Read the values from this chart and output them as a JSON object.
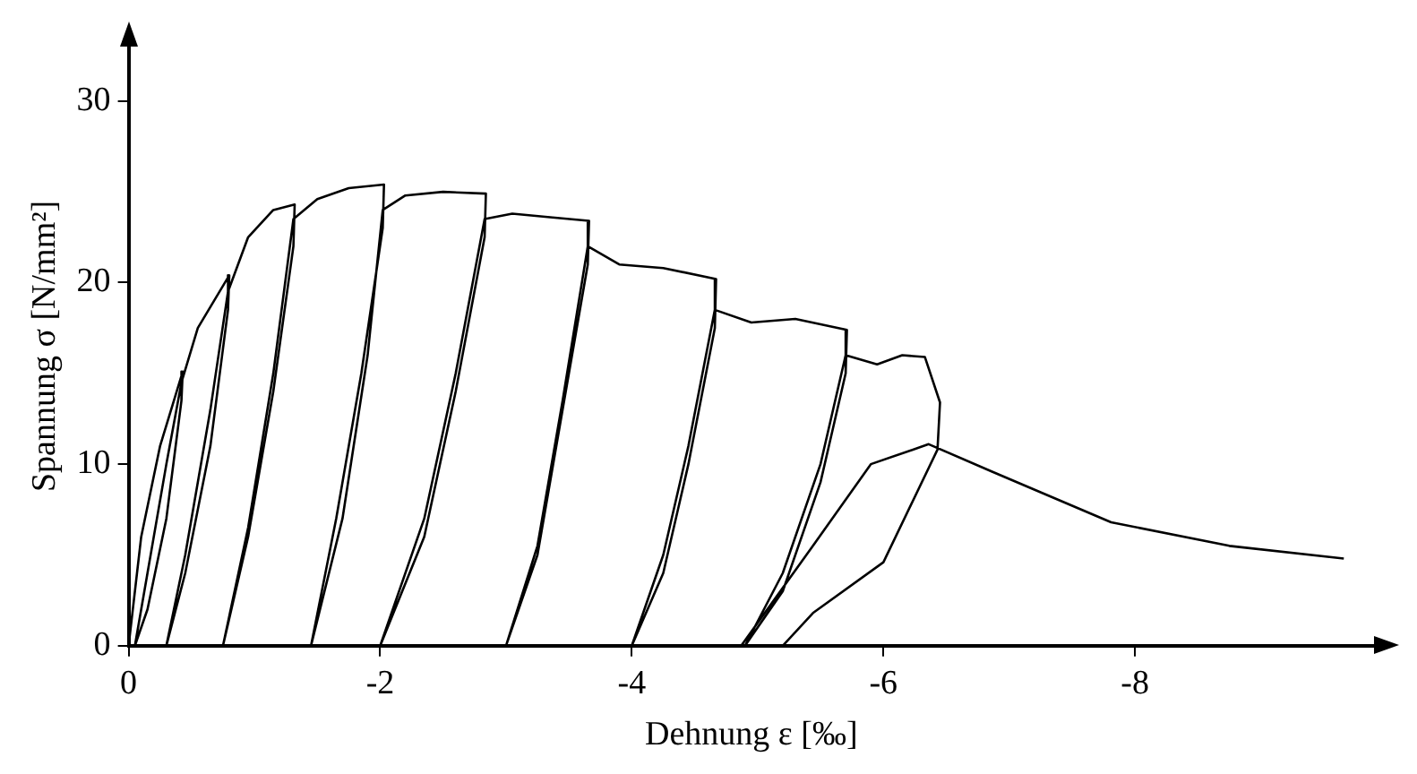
{
  "chart_data": {
    "type": "line",
    "xlabel": "Dehnung ε [‰]",
    "ylabel": "Spannung σ [N/mm²]",
    "xlim": [
      0,
      -9.9
    ],
    "xticks": [
      0,
      -2,
      -4,
      -6,
      -8
    ],
    "ylim": [
      0,
      33
    ],
    "yticks": [
      0,
      10,
      20,
      30
    ],
    "grid": false,
    "legend": false,
    "marker": "none",
    "line_style": "solid",
    "series": [
      {
        "color": "#000000",
        "x": [
          0,
          -0.1,
          -0.25,
          -0.43,
          -0.42,
          -0.3,
          -0.15,
          -0.05,
          -0.15,
          -0.3,
          -0.42,
          -0.55,
          -0.8,
          -0.79,
          -0.65,
          -0.45,
          -0.3,
          -0.45,
          -0.65,
          -0.79,
          -0.95,
          -1.15,
          -1.32,
          -1.31,
          -1.15,
          -0.95,
          -0.75,
          -0.95,
          -1.15,
          -1.31,
          -1.5,
          -1.75,
          -2.03,
          -2.02,
          -1.85,
          -1.65,
          -1.45,
          -1.7,
          -1.9,
          -2.02,
          -2.2,
          -2.5,
          -2.84,
          -2.83,
          -2.6,
          -2.35,
          -2.0,
          -2.35,
          -2.6,
          -2.83,
          -3.05,
          -3.35,
          -3.66,
          -3.65,
          -3.45,
          -3.25,
          -3.0,
          -3.25,
          -3.45,
          -3.65,
          -3.9,
          -4.25,
          -4.67,
          -4.66,
          -4.45,
          -4.25,
          -4.0,
          -4.25,
          -4.45,
          -4.66,
          -4.95,
          -5.3,
          -5.71,
          -5.7,
          -5.5,
          -5.2,
          -4.9,
          -5.2,
          -5.5,
          -5.7,
          -5.95,
          -6.15,
          -6.33,
          -6.45,
          -6.43,
          -6.0,
          -5.44,
          -5.2,
          -4.87,
          -5.44,
          -5.9,
          -6.36,
          -6.86,
          -7.81,
          -8.75,
          -9.66
        ],
        "values": [
          0,
          6,
          11,
          15.1,
          13.5,
          7,
          2,
          0,
          4,
          10,
          14.5,
          17.5,
          20.4,
          18.5,
          11,
          4,
          0,
          5,
          13,
          19.5,
          22.5,
          24,
          24.3,
          22,
          14,
          6,
          0,
          6.5,
          15,
          23.5,
          24.6,
          25.2,
          25.4,
          23,
          15,
          7,
          0,
          7,
          16,
          24,
          24.8,
          25,
          24.9,
          22.5,
          14,
          6,
          0,
          7,
          15,
          23.5,
          23.8,
          23.6,
          23.4,
          21,
          13,
          5,
          0,
          5.5,
          13.5,
          22,
          21,
          20.8,
          20.2,
          17.5,
          10,
          4,
          0,
          5,
          11,
          18.5,
          17.8,
          18,
          17.4,
          15,
          9,
          3,
          0,
          4,
          10,
          16,
          15.5,
          16,
          15.9,
          13.4,
          10.8,
          4.6,
          1.8,
          0,
          0,
          5.5,
          10,
          11.1,
          9.6,
          6.8,
          5.5,
          4.8
        ]
      }
    ]
  }
}
